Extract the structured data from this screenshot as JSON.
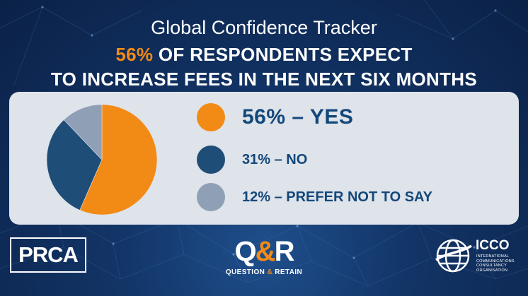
{
  "header": {
    "title": "Global Confidence Tracker",
    "headline_pct": "56%",
    "headline_rest": " OF RESPONDENTS EXPECT",
    "headline_line2": "TO INCREASE FEES IN THE NEXT SIX MONTHS"
  },
  "chart_data": {
    "type": "pie",
    "categories": [
      "YES",
      "NO",
      "PREFER NOT TO SAY"
    ],
    "values": [
      56,
      31,
      12
    ],
    "labels": [
      "56% – YES",
      "31% – NO",
      "12% – PREFER NOT TO SAY"
    ],
    "colors": [
      "#f28a16",
      "#1e4d78",
      "#8f9fb6"
    ],
    "legend_position": "right"
  },
  "logos": {
    "prca": "PRCA",
    "qr_q": "Q",
    "qr_amp": "&",
    "qr_r": "R",
    "qr_tag_1": "QUESTION",
    "qr_tag_amp": "&",
    "qr_tag_2": "RETAIN",
    "icco_name": "ICCO",
    "icco_sub": [
      "INTERNATIONAL",
      "COMMUNICATIONS",
      "CONSULTANCY",
      "ORGANISATION"
    ]
  }
}
